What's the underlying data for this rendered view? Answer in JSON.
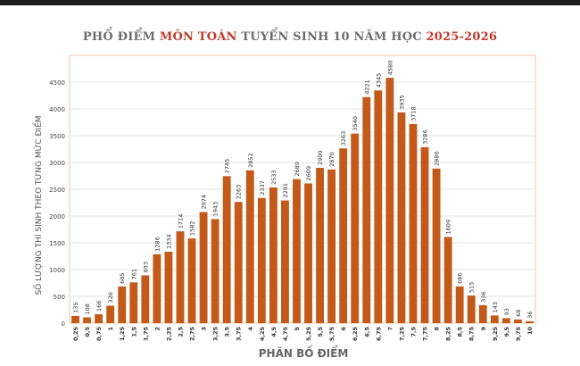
{
  "title": {
    "part1": "PHỔ ĐIỂM ",
    "part2": "MÔN TOÁN",
    "part3": " TUYỂN SINH 10 NĂM HỌC ",
    "part4": "2025-2026"
  },
  "colors": {
    "bar": "#C35A19",
    "title_text": "#6d6d6d",
    "title_highlight": "#c0392b",
    "plot_border": "#f2c7a6",
    "grid": "#e4e4e4"
  },
  "chart_data": {
    "type": "bar",
    "xlabel": "PHÂN BỐ ĐIỂM",
    "ylabel": "SỐ LƯỢNG THÍ SINH THEO TỪNG MỨC ĐIỂM",
    "ylim": [
      0,
      5000
    ],
    "yticks": [
      0,
      500,
      1000,
      1500,
      2000,
      2500,
      3000,
      3500,
      4000,
      4500
    ],
    "grid": true,
    "categories": [
      "0,25",
      "0,5",
      "0,75",
      "1",
      "1,25",
      "1,5",
      "1,75",
      "2",
      "2,25",
      "2,5",
      "2,75",
      "3",
      "3,25",
      "3,5",
      "3,75",
      "4",
      "4,25",
      "4,5",
      "4,75",
      "5",
      "5,25",
      "5,5",
      "5,75",
      "6",
      "6,25",
      "6,5",
      "6,75",
      "7",
      "7,25",
      "7,5",
      "7,75",
      "8",
      "8,25",
      "8,5",
      "8,75",
      "9",
      "9,25",
      "9,5",
      "9,75",
      "10"
    ],
    "values": [
      135,
      108,
      166,
      326,
      685,
      761,
      893,
      1286,
      1334,
      1714,
      1582,
      2074,
      1943,
      2745,
      2263,
      2852,
      2337,
      2533,
      2291,
      2689,
      2609,
      2900,
      2870,
      3263,
      3540,
      4221,
      4345,
      4580,
      3935,
      3718,
      3286,
      2886,
      1609,
      686,
      515,
      336,
      143,
      93,
      68,
      36
    ]
  }
}
